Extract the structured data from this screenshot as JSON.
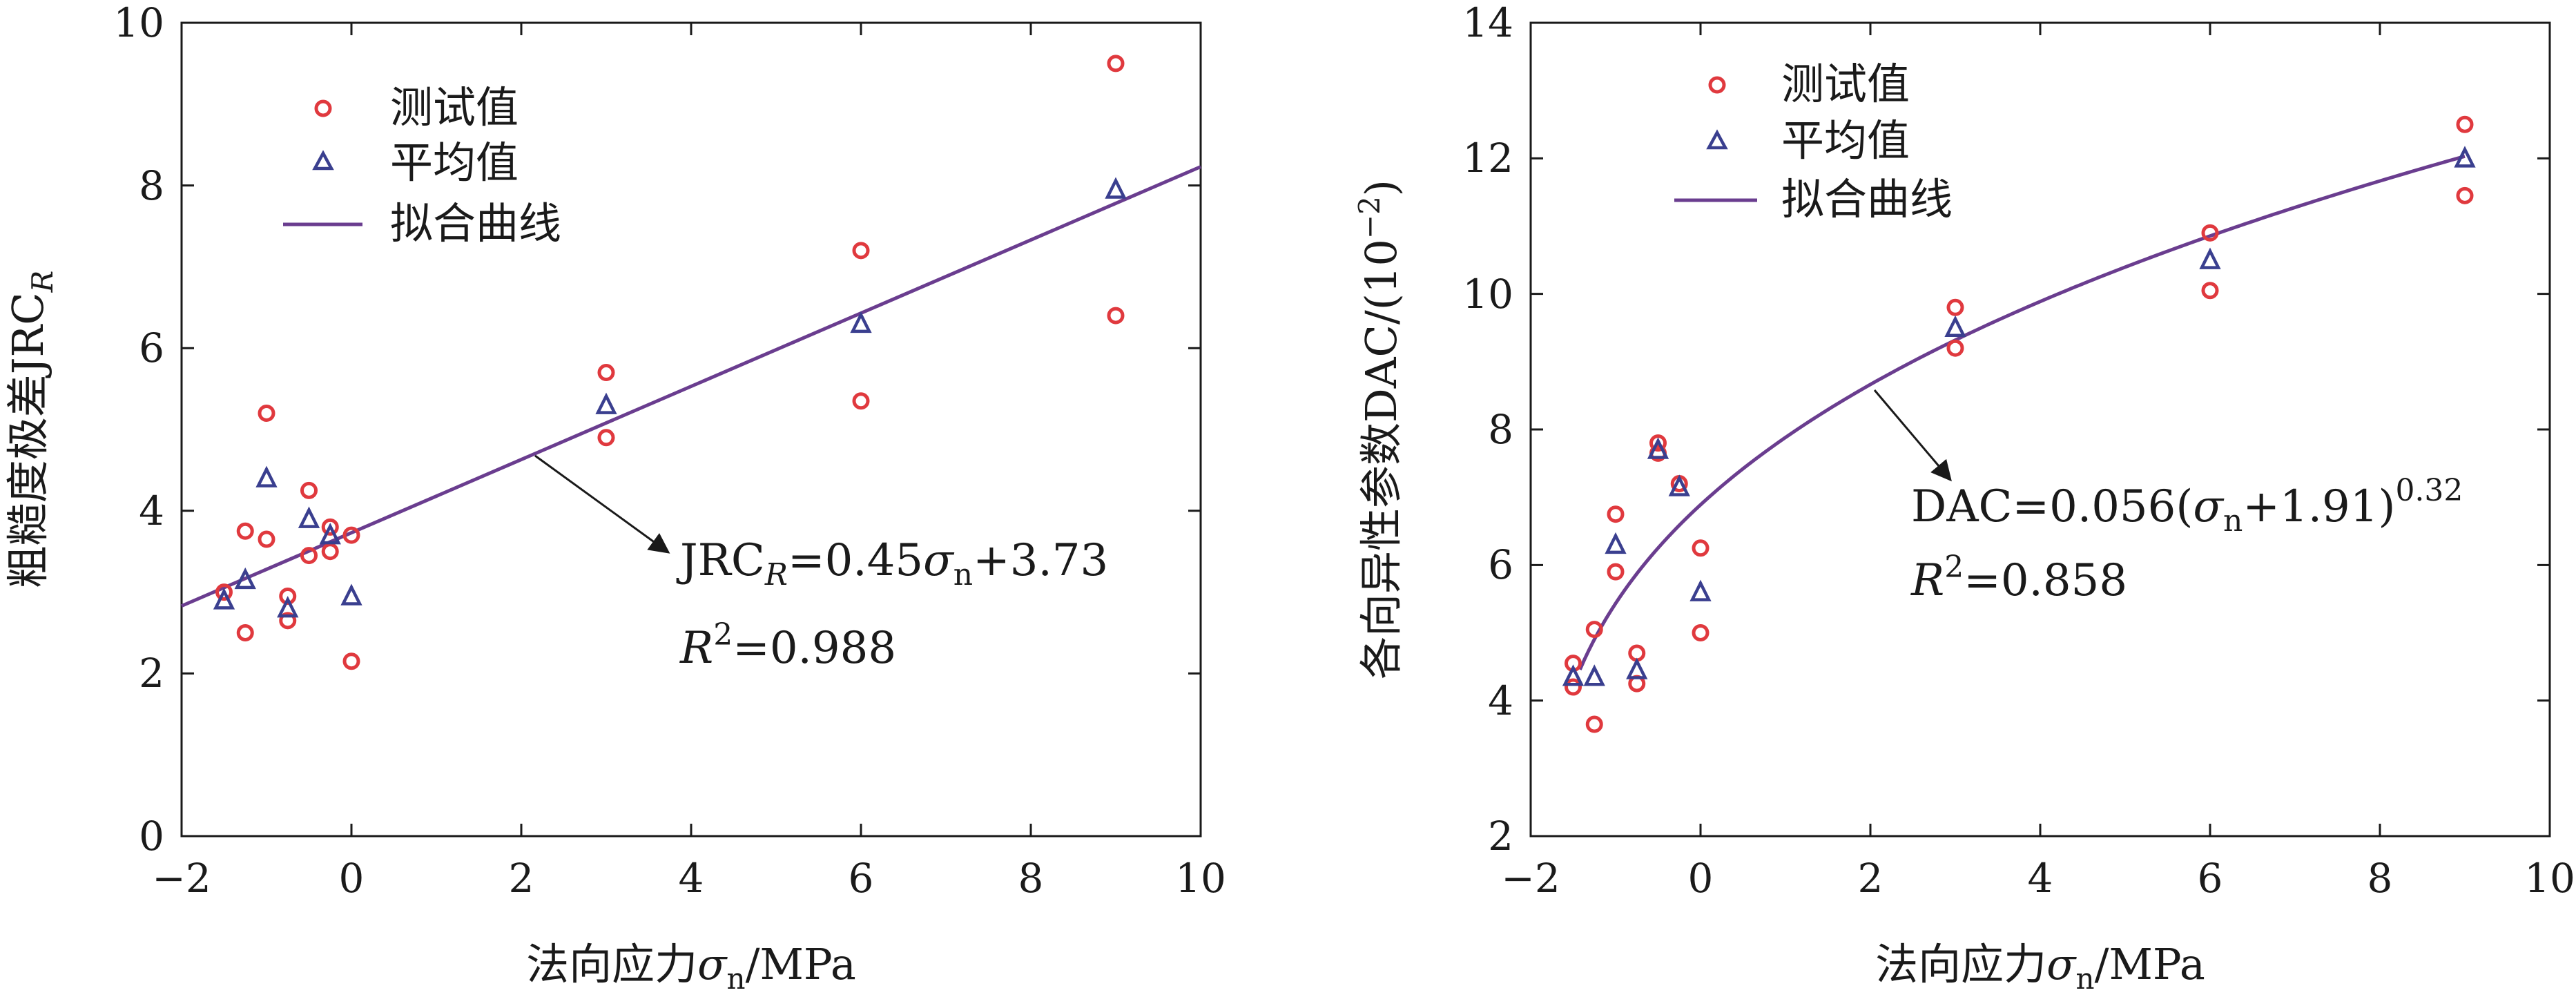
{
  "colors": {
    "measured": "#e0393e",
    "average": "#3a3f8f",
    "fit": "#6a3d8f",
    "axis": "#1a1a1a"
  },
  "chart_data": [
    {
      "type": "scatter",
      "panel": "left",
      "xlabel": "法向应力σn/MPa",
      "ylabel": "粗糙度极差JRCR",
      "xlim": [
        -2,
        10
      ],
      "ylim": [
        0,
        10
      ],
      "xticks": [
        "−2",
        "0",
        "2",
        "4",
        "6",
        "8",
        "10"
      ],
      "yticks": [
        "0",
        "2",
        "4",
        "6",
        "8",
        "10"
      ],
      "legend": [
        "测试值",
        "平均值",
        "拟合曲线"
      ],
      "series": [
        {
          "name": "测试值",
          "marker": "circle",
          "points": [
            [
              -1.5,
              3.0
            ],
            [
              -1.25,
              3.75
            ],
            [
              -1.25,
              2.5
            ],
            [
              -1.0,
              5.2
            ],
            [
              -1.0,
              3.65
            ],
            [
              -0.75,
              2.95
            ],
            [
              -0.75,
              2.65
            ],
            [
              -0.5,
              4.25
            ],
            [
              -0.5,
              3.45
            ],
            [
              -0.25,
              3.8
            ],
            [
              -0.25,
              3.5
            ],
            [
              0.0,
              3.7
            ],
            [
              0.0,
              2.15
            ],
            [
              3.0,
              5.7
            ],
            [
              3.0,
              4.9
            ],
            [
              6.0,
              7.2
            ],
            [
              6.0,
              5.35
            ],
            [
              9.0,
              9.5
            ],
            [
              9.0,
              6.4
            ]
          ]
        },
        {
          "name": "平均值",
          "marker": "triangle",
          "points": [
            [
              -1.5,
              2.9
            ],
            [
              -1.25,
              3.15
            ],
            [
              -1.0,
              4.4
            ],
            [
              -0.75,
              2.8
            ],
            [
              -0.5,
              3.9
            ],
            [
              -0.25,
              3.7
            ],
            [
              0.0,
              2.95
            ],
            [
              3.0,
              5.3
            ],
            [
              6.0,
              6.3
            ],
            [
              9.0,
              7.95
            ]
          ]
        },
        {
          "name": "拟合曲线",
          "kind": "line",
          "x_range": [
            -2,
            10
          ],
          "slope": 0.45,
          "intercept": 3.73
        }
      ],
      "annotations": {
        "equation": "JRCR=0.45σn+3.73",
        "r2": "R2=0.988"
      }
    },
    {
      "type": "scatter",
      "panel": "right",
      "xlabel": "法向应力σn/MPa",
      "ylabel": "各向异性参数DAC/(10−2)",
      "xlim": [
        -2,
        10
      ],
      "ylim": [
        2,
        14
      ],
      "xticks": [
        "−2",
        "0",
        "2",
        "4",
        "6",
        "8",
        "10"
      ],
      "yticks": [
        "2",
        "4",
        "6",
        "8",
        "10",
        "12",
        "14"
      ],
      "legend": [
        "测试值",
        "平均值",
        "拟合曲线"
      ],
      "series": [
        {
          "name": "测试值",
          "marker": "circle",
          "points": [
            [
              -1.5,
              4.55
            ],
            [
              -1.5,
              4.2
            ],
            [
              -1.25,
              5.05
            ],
            [
              -1.25,
              3.65
            ],
            [
              -1.0,
              6.75
            ],
            [
              -1.0,
              5.9
            ],
            [
              -0.75,
              4.7
            ],
            [
              -0.75,
              4.25
            ],
            [
              -0.5,
              7.8
            ],
            [
              -0.5,
              7.65
            ],
            [
              -0.25,
              7.2
            ],
            [
              0.0,
              6.25
            ],
            [
              0.0,
              5.0
            ],
            [
              3.0,
              9.8
            ],
            [
              3.0,
              9.2
            ],
            [
              6.0,
              10.9
            ],
            [
              6.0,
              10.05
            ],
            [
              9.0,
              12.5
            ],
            [
              9.0,
              11.45
            ]
          ]
        },
        {
          "name": "平均值",
          "marker": "triangle",
          "points": [
            [
              -1.5,
              4.35
            ],
            [
              -1.25,
              4.35
            ],
            [
              -1.0,
              6.3
            ],
            [
              -0.75,
              4.45
            ],
            [
              -0.5,
              7.7
            ],
            [
              -0.25,
              7.15
            ],
            [
              0.0,
              5.6
            ],
            [
              3.0,
              9.5
            ],
            [
              6.0,
              10.5
            ],
            [
              9.0,
              12.0
            ]
          ]
        },
        {
          "name": "拟合曲线",
          "kind": "power",
          "x_range": [
            -1.42,
            9.0
          ],
          "a": 0.056,
          "b": 1.91,
          "c": 0.32
        }
      ],
      "annotations": {
        "equation": "DAC=0.056(σn+1.91)0.32",
        "r2": "R2=0.858"
      }
    }
  ]
}
